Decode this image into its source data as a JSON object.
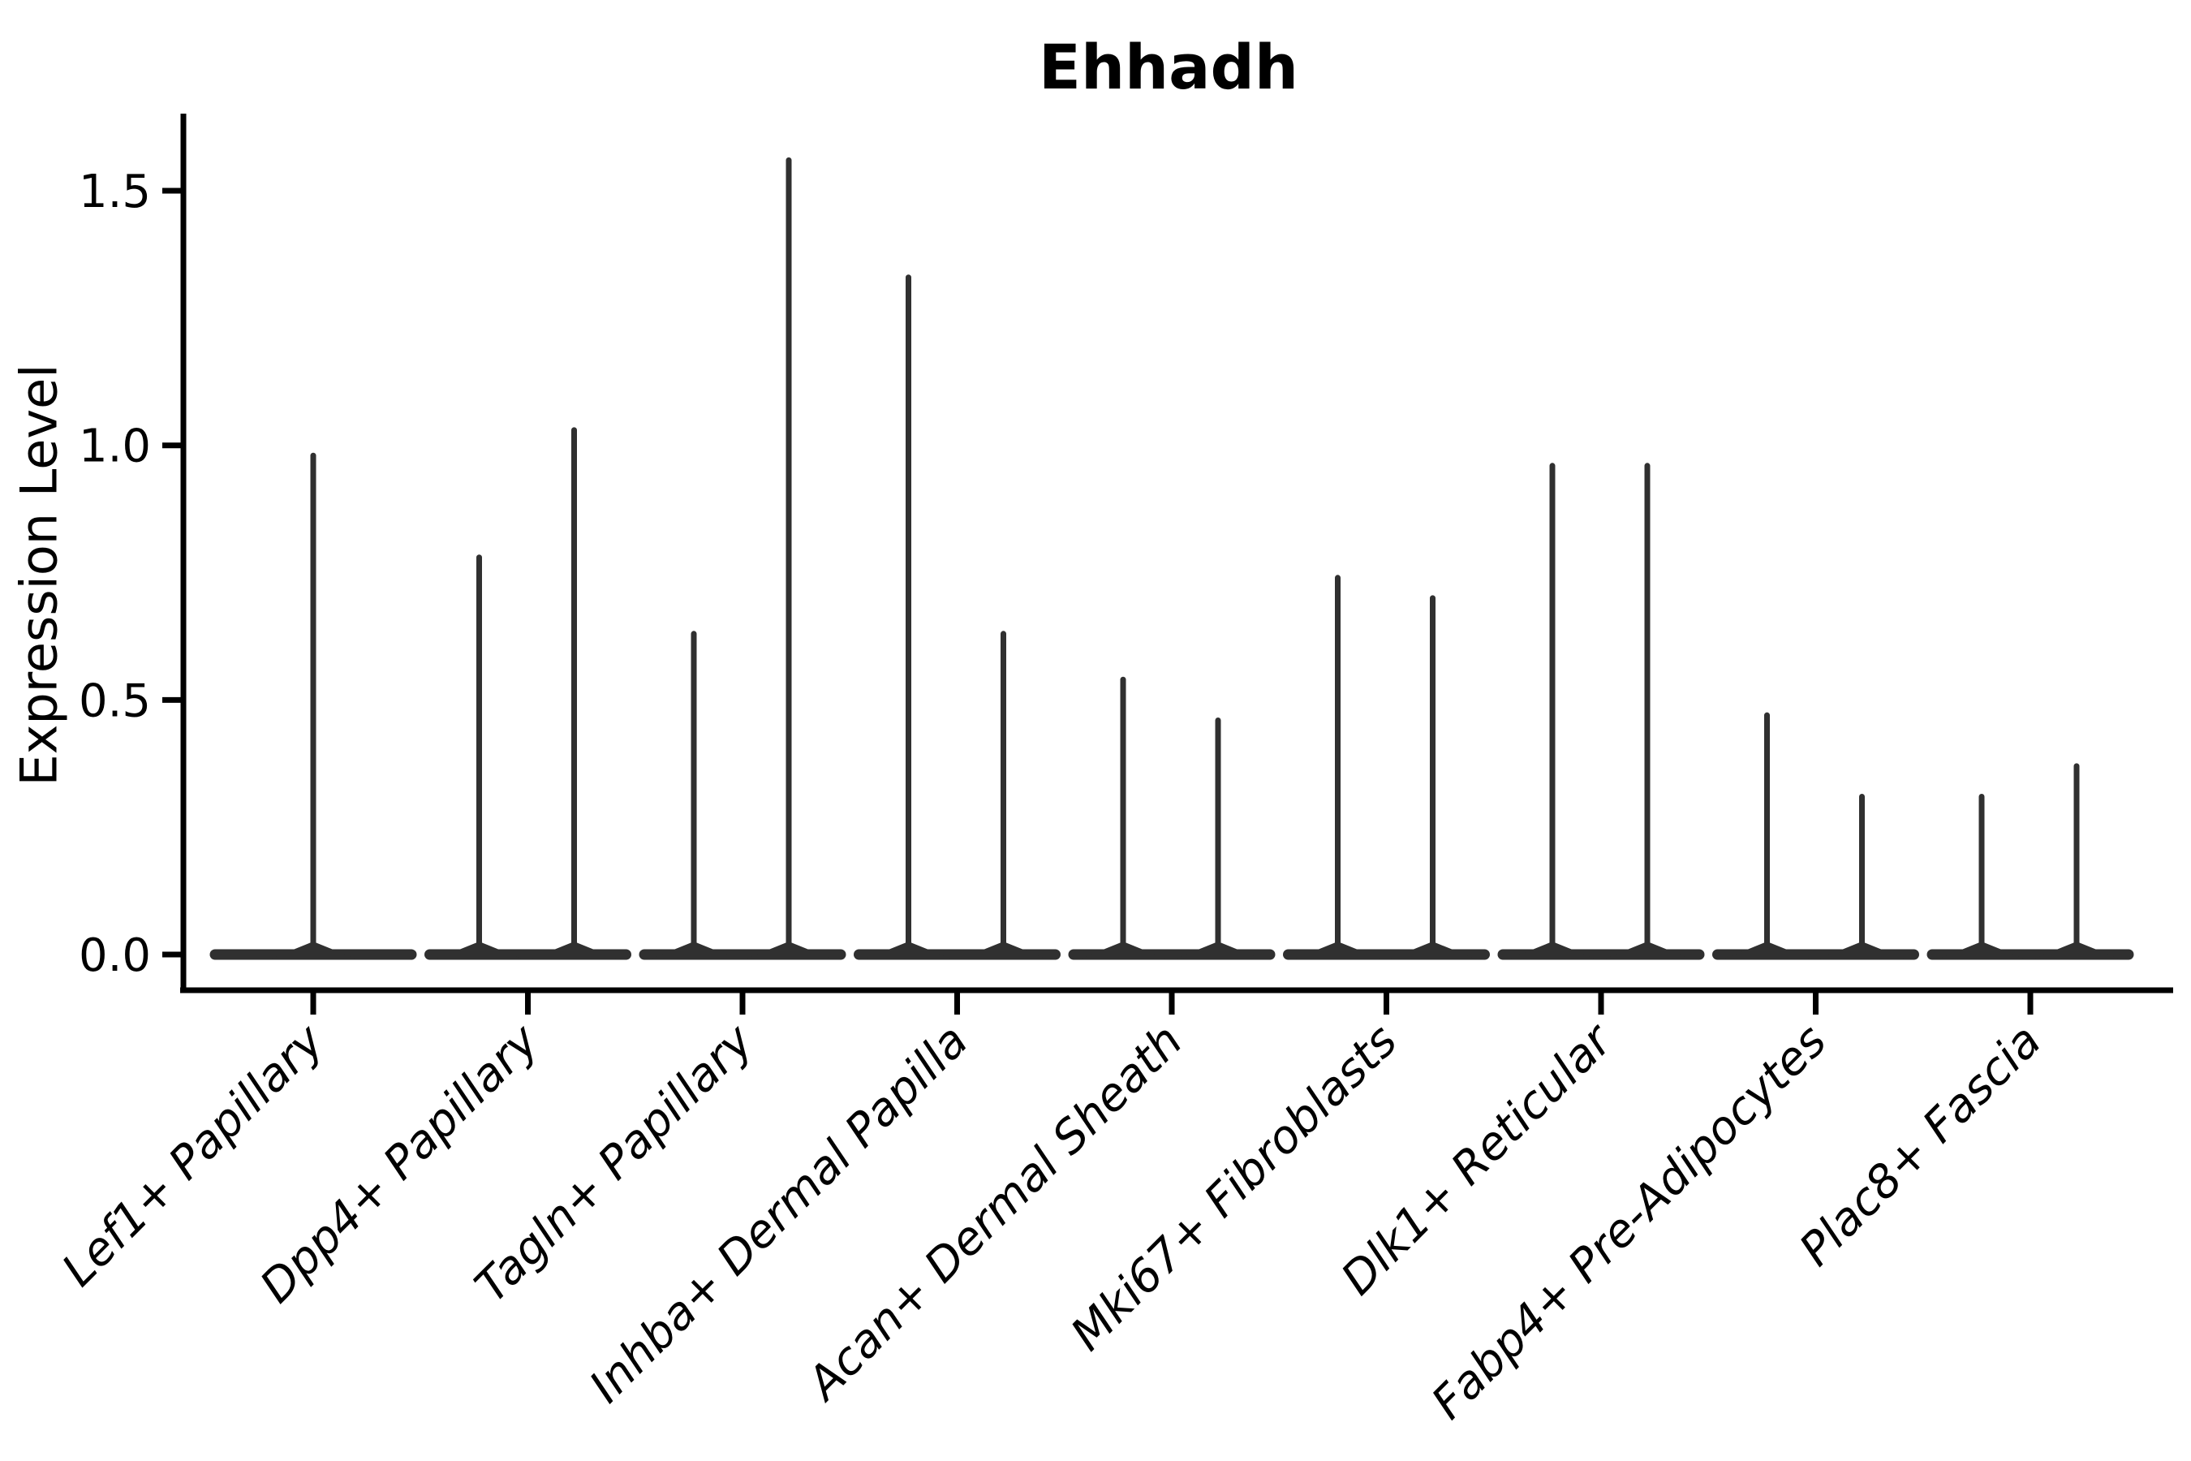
{
  "title": "Ehhadh",
  "y_axis": {
    "label": "Expression Level",
    "tick_labels": [
      "0.0",
      "0.5",
      "1.0",
      "1.5"
    ],
    "tick_values": [
      0.0,
      0.5,
      1.0,
      1.5
    ]
  },
  "colors": {
    "violin_stroke": "#303030",
    "axis": "#000000",
    "background": "#ffffff"
  },
  "chart_data": {
    "type": "violin",
    "title": "Ehhadh",
    "xlabel": "",
    "ylabel": "Expression Level",
    "yticks": [
      0.0,
      0.5,
      1.0,
      1.5
    ],
    "ylim": [
      -0.08,
      1.65
    ],
    "grid": false,
    "legend": "none",
    "base_value": 0.0,
    "categories": [
      "Lef1+ Papillary",
      "Dpp4+ Papillary",
      "Tagln+ Papillary",
      "Inhba+ Dermal Papilla",
      "Acan+ Dermal Sheath",
      "Mki67+ Fibroblasts",
      "Dlk1+ Reticular",
      "Fabp4+ Pre-Adipocytes",
      "Plac8+ Fascia"
    ],
    "violins": [
      {
        "category": "Lef1+ Papillary",
        "spikes": [
          {
            "dx": 0,
            "max": 0.98
          }
        ]
      },
      {
        "category": "Dpp4+ Papillary",
        "spikes": [
          {
            "dx": -60,
            "max": 0.78
          },
          {
            "dx": 57,
            "max": 1.03
          }
        ]
      },
      {
        "category": "Tagln+ Papillary",
        "spikes": [
          {
            "dx": -60,
            "max": 0.63
          },
          {
            "dx": 57,
            "max": 1.56
          }
        ]
      },
      {
        "category": "Inhba+ Dermal Papilla",
        "spikes": [
          {
            "dx": -60,
            "max": 1.33
          },
          {
            "dx": 57,
            "max": 0.63
          }
        ]
      },
      {
        "category": "Acan+ Dermal Sheath",
        "spikes": [
          {
            "dx": -60,
            "max": 0.54
          },
          {
            "dx": 57,
            "max": 0.46
          }
        ]
      },
      {
        "category": "Mki67+ Fibroblasts",
        "spikes": [
          {
            "dx": -60,
            "max": 0.74
          },
          {
            "dx": 57,
            "max": 0.7
          }
        ]
      },
      {
        "category": "Dlk1+ Reticular",
        "spikes": [
          {
            "dx": -60,
            "max": 0.96
          },
          {
            "dx": 57,
            "max": 0.96
          }
        ]
      },
      {
        "category": "Fabp4+ Pre-Adipocytes",
        "spikes": [
          {
            "dx": -60,
            "max": 0.47
          },
          {
            "dx": 57,
            "max": 0.31
          }
        ]
      },
      {
        "category": "Plac8+ Fascia",
        "spikes": [
          {
            "dx": -60,
            "max": 0.31
          },
          {
            "dx": 57,
            "max": 0.37
          }
        ]
      }
    ]
  }
}
